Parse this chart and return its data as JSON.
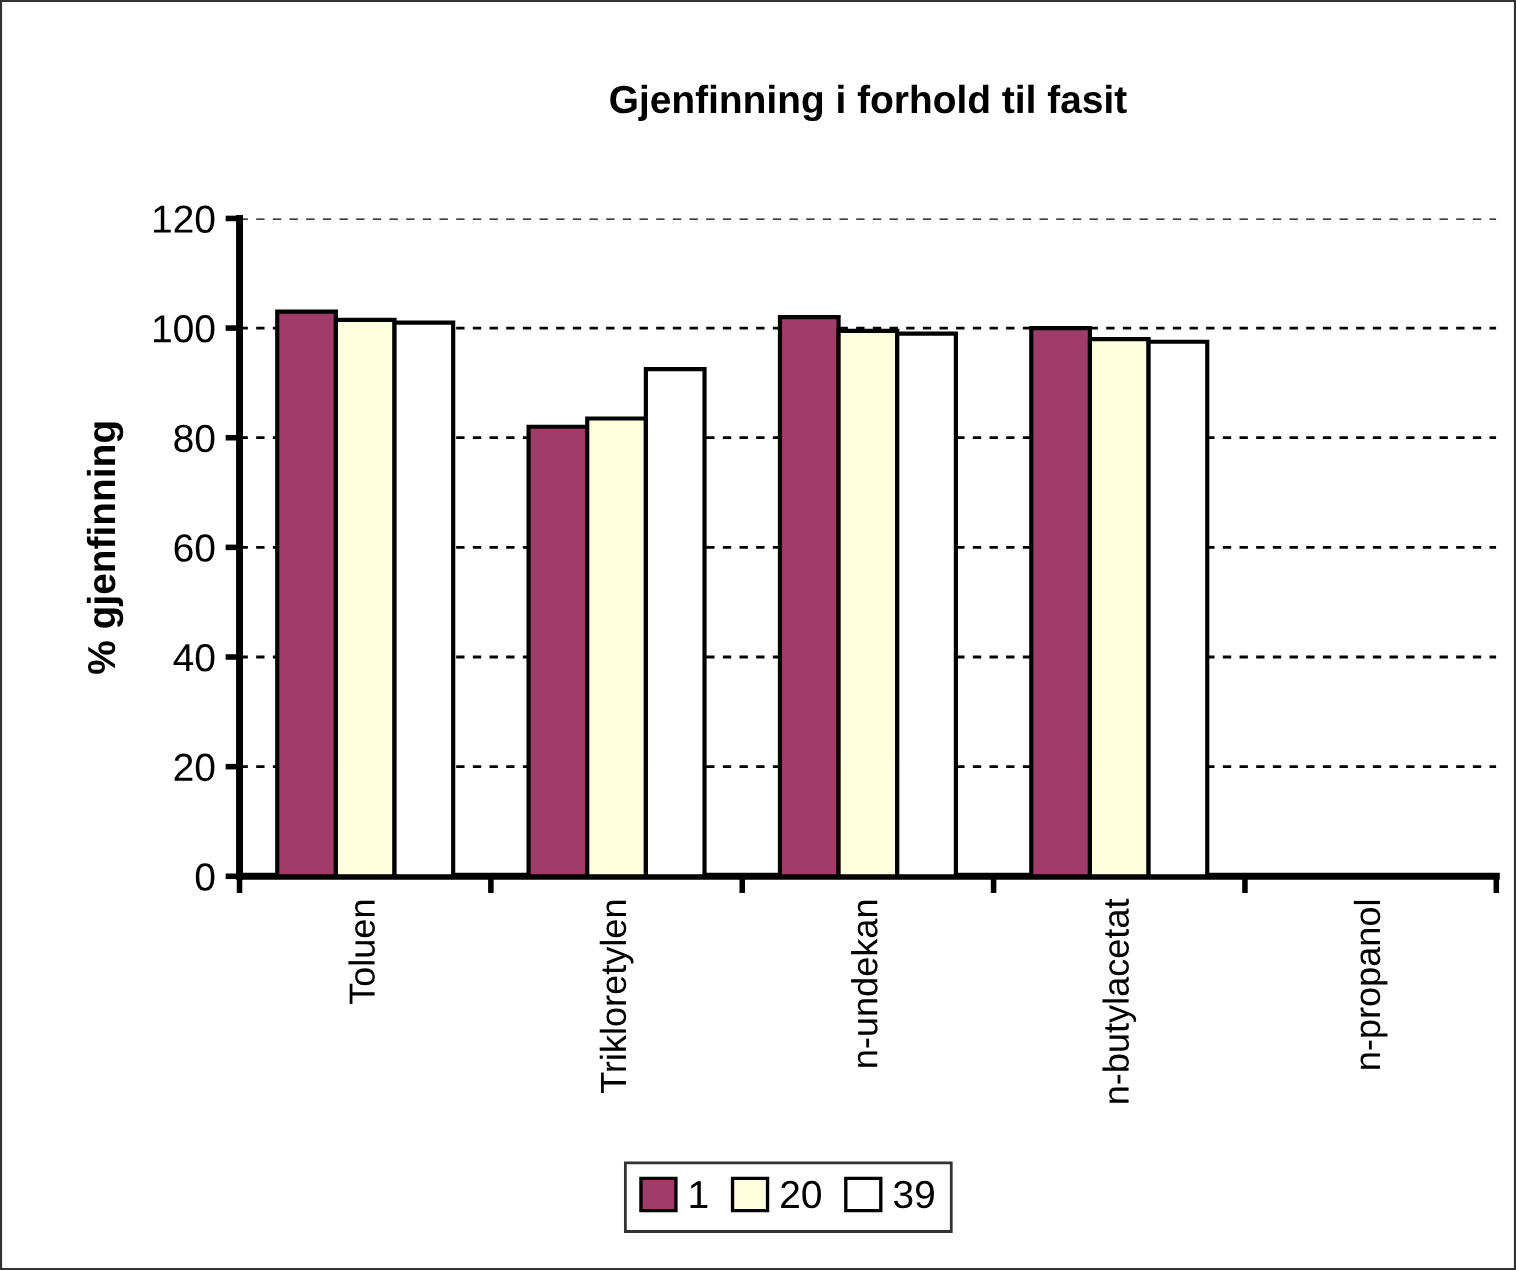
{
  "chart_data": {
    "type": "bar",
    "title": "Gjenfinning i forhold til fasit",
    "ylabel": "% gjenfinning",
    "categories": [
      "Toluen",
      "Trikloretylen",
      "n-undekan",
      "n-butylacetat",
      "n-propanol"
    ],
    "series": [
      {
        "name": "1",
        "color": "#a03c68",
        "values": [
          103,
          82,
          102,
          100,
          null
        ]
      },
      {
        "name": "20",
        "color": "#ffffe0",
        "values": [
          101.5,
          83.5,
          99.5,
          98,
          null
        ]
      },
      {
        "name": "39",
        "color": "#ffffff",
        "values": [
          101,
          92.5,
          99,
          97.5,
          null
        ]
      }
    ],
    "ylim": [
      0,
      120
    ],
    "yticks": [
      0,
      20,
      40,
      60,
      80,
      100,
      120
    ],
    "grid": "y",
    "legend": "bottom"
  }
}
